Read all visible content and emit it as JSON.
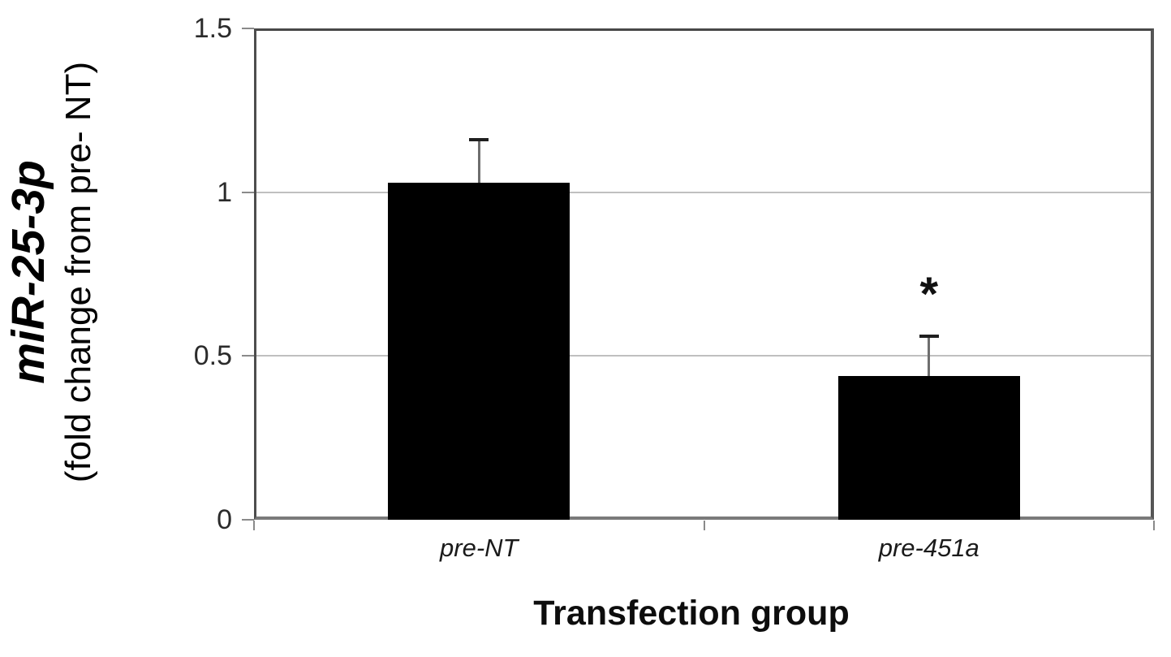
{
  "chart_data": {
    "type": "bar",
    "title": "",
    "categories": [
      "pre-NT",
      "pre-451a"
    ],
    "values": [
      1.03,
      0.44
    ],
    "errors_plus": [
      0.13,
      0.12
    ],
    "annotations": [
      "",
      "*"
    ],
    "xlabel": "Transfection group",
    "ylabel_line1": "miR-25-3p",
    "ylabel_line2": "(fold change from pre- NT)",
    "ylim": [
      0,
      1.5
    ],
    "yticks": [
      0,
      0.5,
      1,
      1.5
    ],
    "ytick_labels": [
      "0",
      "0.5",
      "1",
      "1.5"
    ],
    "legend": null,
    "grid": true,
    "bar_color": "#000000",
    "gridline_color": "#c0c0c0",
    "axis_color": "#7a7a7a",
    "tick_color": "#8a8a8a",
    "error_stem_color": "#6e6e6e",
    "error_cap_color": "#1f1f1f"
  }
}
